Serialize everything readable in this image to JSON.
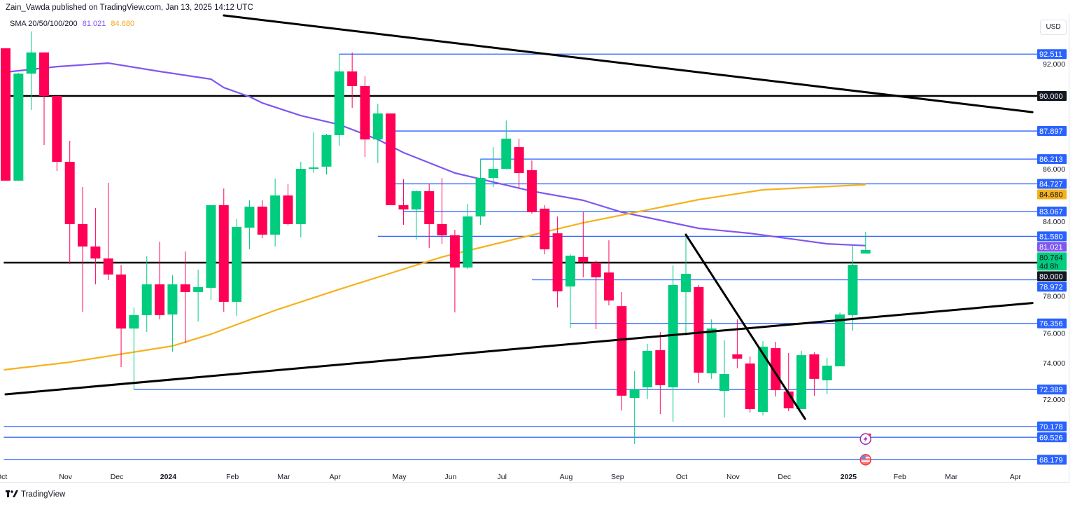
{
  "header": {
    "publisher_line": "Zain_Vawda published on TradingView.com, Jan 13, 2025 14:12 UTC",
    "currency_button": "USD",
    "footer_logo": "TradingView"
  },
  "legend": {
    "indicator": "SMA 20/50/100/200",
    "value_1": "81.021",
    "value_2": "84.680"
  },
  "colors": {
    "up": "#00cc7e",
    "down": "#ff0055",
    "sma_purple": "#7e57f0",
    "sma_orange": "#f5b21b",
    "level_blue": "#2962ff",
    "level_black": "#000000"
  },
  "icons": {
    "event_1": "lightning-event-icon",
    "event_2": "us-flag-icon"
  },
  "chart_data": {
    "type": "candlestick",
    "interval": "weekly",
    "ylim": [
      67.3,
      94.9
    ],
    "xlim": [
      "2023-10-01",
      "2025-04-20"
    ],
    "grid": false,
    "candle_fields": [
      "date",
      "open",
      "high",
      "low",
      "close"
    ],
    "candles": [
      [
        "2023-10-02",
        92.86,
        92.86,
        84.92,
        84.92
      ],
      [
        "2023-10-09",
        84.92,
        91.39,
        84.92,
        91.34
      ],
      [
        "2023-10-16",
        91.34,
        93.87,
        89.16,
        92.61
      ],
      [
        "2023-10-23",
        92.61,
        92.61,
        87.06,
        90.0
      ],
      [
        "2023-10-30",
        90.0,
        90.0,
        85.5,
        86.05
      ],
      [
        "2023-11-06",
        86.05,
        87.31,
        79.92,
        82.31
      ],
      [
        "2023-11-13",
        82.31,
        84.54,
        77.06,
        80.97
      ],
      [
        "2023-11-20",
        80.97,
        83.28,
        78.7,
        80.25
      ],
      [
        "2023-11-27",
        80.25,
        84.79,
        78.95,
        79.29
      ],
      [
        "2023-12-04",
        79.29,
        79.87,
        73.74,
        76.05
      ],
      [
        "2023-12-11",
        76.05,
        77.31,
        72.39,
        76.85
      ],
      [
        "2023-12-18",
        76.85,
        80.38,
        75.84,
        78.7
      ],
      [
        "2023-12-25",
        78.7,
        81.26,
        76.6,
        76.85
      ],
      [
        "2024-01-01",
        76.89,
        79.24,
        74.66,
        78.7
      ],
      [
        "2024-01-08",
        78.7,
        80.67,
        75.17,
        78.24
      ],
      [
        "2024-01-15",
        78.24,
        79.58,
        76.47,
        78.53
      ],
      [
        "2024-01-22",
        78.49,
        83.45,
        77.77,
        83.45
      ],
      [
        "2024-01-29",
        83.45,
        84.45,
        77.06,
        77.65
      ],
      [
        "2024-02-05",
        77.65,
        82.61,
        76.81,
        82.14
      ],
      [
        "2024-02-12",
        82.1,
        83.74,
        80.8,
        83.36
      ],
      [
        "2024-02-19",
        83.36,
        83.74,
        81.47,
        81.68
      ],
      [
        "2024-02-26",
        81.68,
        85.04,
        80.97,
        84.03
      ],
      [
        "2024-03-04",
        84.03,
        84.71,
        82.23,
        82.31
      ],
      [
        "2024-03-11",
        82.31,
        86.05,
        81.51,
        85.63
      ],
      [
        "2024-03-18",
        85.63,
        87.82,
        85.38,
        85.71
      ],
      [
        "2024-03-25",
        85.76,
        87.73,
        85.29,
        87.65
      ],
      [
        "2024-04-01",
        87.65,
        92.52,
        87.02,
        91.47
      ],
      [
        "2024-04-08",
        91.47,
        92.61,
        89.29,
        90.59
      ],
      [
        "2024-04-15",
        90.59,
        91.18,
        86.34,
        87.39
      ],
      [
        "2024-04-22",
        87.39,
        89.54,
        85.97,
        88.95
      ],
      [
        "2024-04-29",
        88.95,
        88.95,
        83.45,
        83.45
      ],
      [
        "2024-05-06",
        83.45,
        85.0,
        82.27,
        83.19
      ],
      [
        "2024-05-13",
        83.19,
        84.33,
        81.39,
        84.29
      ],
      [
        "2024-05-20",
        84.29,
        84.75,
        80.88,
        82.31
      ],
      [
        "2024-05-27",
        82.31,
        85.08,
        81.13,
        81.64
      ],
      [
        "2024-06-03",
        81.64,
        81.97,
        77.02,
        79.71
      ],
      [
        "2024-06-10",
        79.71,
        83.53,
        79.62,
        82.77
      ],
      [
        "2024-06-17",
        82.77,
        86.22,
        82.27,
        85.08
      ],
      [
        "2024-06-24",
        85.08,
        86.93,
        84.54,
        85.63
      ],
      [
        "2024-07-01",
        85.63,
        88.53,
        85.59,
        87.44
      ],
      [
        "2024-07-08",
        86.93,
        87.44,
        84.5,
        85.38
      ],
      [
        "2024-07-15",
        85.55,
        86.13,
        82.94,
        83.03
      ],
      [
        "2024-07-22",
        83.24,
        83.45,
        80.5,
        80.8
      ],
      [
        "2024-07-29",
        81.76,
        82.77,
        77.31,
        78.28
      ],
      [
        "2024-08-05",
        78.57,
        80.5,
        76.09,
        80.42
      ],
      [
        "2024-08-12",
        80.34,
        83.03,
        79.12,
        80.04
      ],
      [
        "2024-08-19",
        80.0,
        80.13,
        76.01,
        79.12
      ],
      [
        "2024-08-26",
        79.41,
        81.34,
        77.44,
        77.73
      ],
      [
        "2024-09-02",
        77.39,
        78.24,
        71.13,
        72.02
      ],
      [
        "2024-09-09",
        71.89,
        73.49,
        69.12,
        72.39
      ],
      [
        "2024-09-16",
        72.52,
        75.13,
        71.81,
        74.71
      ],
      [
        "2024-09-23",
        74.75,
        75.84,
        70.92,
        72.65
      ],
      [
        "2024-09-30",
        72.52,
        79.83,
        70.46,
        78.66
      ],
      [
        "2024-10-07",
        78.24,
        81.68,
        75.63,
        79.33
      ],
      [
        "2024-10-14",
        78.53,
        78.66,
        72.77,
        73.4
      ],
      [
        "2024-10-21",
        73.36,
        76.6,
        73.03,
        76.05
      ],
      [
        "2024-10-28",
        72.31,
        75.34,
        70.71,
        73.32
      ],
      [
        "2024-11-04",
        74.5,
        76.6,
        73.66,
        74.24
      ],
      [
        "2024-11-11",
        73.95,
        74.37,
        71.01,
        71.22
      ],
      [
        "2024-11-18",
        71.05,
        75.29,
        70.84,
        74.96
      ],
      [
        "2024-11-25",
        74.87,
        75.25,
        71.97,
        72.35
      ],
      [
        "2024-12-02",
        72.27,
        74.58,
        71.09,
        71.26
      ],
      [
        "2024-12-09",
        71.22,
        74.71,
        71.22,
        74.45
      ],
      [
        "2024-12-16",
        74.5,
        74.62,
        72.02,
        73.03
      ],
      [
        "2024-12-23",
        72.94,
        74.29,
        72.1,
        73.82
      ],
      [
        "2024-12-30",
        73.78,
        77.02,
        73.78,
        76.89
      ],
      [
        "2025-01-06",
        76.85,
        81.01,
        75.92,
        79.87
      ],
      [
        "2025-01-13",
        80.55,
        81.85,
        80.55,
        80.764
      ]
    ],
    "sma_lines": [
      {
        "value_label": "81.021",
        "color": "#7e57f0",
        "points": [
          [
            "2023-10-02",
            91.43
          ],
          [
            "2023-10-30",
            91.76
          ],
          [
            "2023-11-27",
            91.97
          ],
          [
            "2023-12-25",
            91.47
          ],
          [
            "2024-01-22",
            91.01
          ],
          [
            "2024-01-29",
            90.5
          ],
          [
            "2024-02-12",
            89.96
          ],
          [
            "2024-02-19",
            89.58
          ],
          [
            "2024-03-11",
            88.82
          ],
          [
            "2024-04-01",
            88.28
          ],
          [
            "2024-04-22",
            87.39
          ],
          [
            "2024-05-06",
            86.6
          ],
          [
            "2024-06-03",
            85.38
          ],
          [
            "2024-07-15",
            84.29
          ],
          [
            "2024-08-12",
            83.74
          ],
          [
            "2024-09-02",
            83.03
          ],
          [
            "2024-10-14",
            82.06
          ],
          [
            "2024-11-11",
            81.76
          ],
          [
            "2024-12-23",
            81.13
          ],
          [
            "2025-01-13",
            81.02
          ]
        ]
      },
      {
        "value_label": "84.680",
        "color": "#f5b21b",
        "points": [
          [
            "2023-10-01",
            73.57
          ],
          [
            "2023-11-06",
            74.03
          ],
          [
            "2024-01-01",
            75.0
          ],
          [
            "2024-01-22",
            75.71
          ],
          [
            "2024-02-26",
            77.14
          ],
          [
            "2024-04-01",
            78.4
          ],
          [
            "2024-04-29",
            79.37
          ],
          [
            "2024-05-27",
            80.34
          ],
          [
            "2024-07-08",
            81.47
          ],
          [
            "2024-08-12",
            82.39
          ],
          [
            "2024-10-14",
            83.78
          ],
          [
            "2024-11-18",
            84.37
          ],
          [
            "2025-01-13",
            84.68
          ]
        ]
      }
    ],
    "trend_lines": [
      {
        "from": [
          "2024-01-29",
          94.83
        ],
        "to": [
          "2025-04-14",
          89.03
        ]
      },
      {
        "from": [
          "2023-10-02",
          72.1
        ],
        "to": [
          "2025-04-14",
          77.58
        ]
      },
      {
        "from": [
          "2024-10-07",
          81.68
        ],
        "to": [
          "2024-12-11",
          70.63
        ]
      }
    ],
    "horizontal_levels": [
      {
        "price": 92.511,
        "label": "92.511",
        "color": "#2962ff",
        "from": "2024-04-01"
      },
      {
        "price": 90.0,
        "label": "90.000",
        "color": "#000000",
        "from": "2023-10-01"
      },
      {
        "price": 87.897,
        "label": "87.897",
        "color": "#2962ff",
        "from": "2024-05-01"
      },
      {
        "price": 86.213,
        "label": "86.213",
        "color": "#2962ff",
        "from": "2024-06-17"
      },
      {
        "price": 84.727,
        "label": "84.727",
        "color": "#2962ff",
        "from": "2024-05-01"
      },
      {
        "price": 83.067,
        "label": "83.067",
        "color": "#2962ff",
        "from": "2024-05-06"
      },
      {
        "price": 81.58,
        "label": "81.580",
        "color": "#2962ff",
        "from": "2024-04-22"
      },
      {
        "price": 80.0,
        "label": "80.000",
        "color": "#000000",
        "from": "2023-10-01"
      },
      {
        "price": 78.972,
        "label": "78.972",
        "color": "#2962ff",
        "from": "2024-07-15"
      },
      {
        "price": 76.356,
        "label": "76.356",
        "color": "#2962ff",
        "from": "2024-08-05"
      },
      {
        "price": 72.389,
        "label": "72.389",
        "color": "#2962ff",
        "from": "2023-12-11"
      },
      {
        "price": 70.178,
        "label": "70.178",
        "color": "#2962ff",
        "from": "2023-10-01"
      },
      {
        "price": 69.526,
        "label": "69.526",
        "color": "#2962ff",
        "from": "2023-10-01"
      },
      {
        "price": 68.179,
        "label": "68.179",
        "color": "#2962ff",
        "from": "2023-10-01"
      }
    ],
    "price_tags": [
      {
        "price": 84.68,
        "label": "84.680",
        "bg": "#f5b21b",
        "fg": "#131722"
      },
      {
        "price": 81.021,
        "label": "81.021",
        "bg": "#7e57f0",
        "fg": "#ffffff"
      },
      {
        "price": 80.764,
        "label": "80.764",
        "sub": "4d 8h",
        "bg": "#00cc7e",
        "fg": "#131722"
      }
    ],
    "y_ticks": [
      {
        "price": 92,
        "label": "92.000"
      },
      {
        "price": 86,
        "label": "86.000"
      },
      {
        "price": 84,
        "label": "84.000"
      },
      {
        "price": 78,
        "label": "78.000"
      },
      {
        "price": 76,
        "label": "76.000"
      },
      {
        "price": 74,
        "label": "74.000"
      },
      {
        "price": 72,
        "label": "72.000"
      }
    ],
    "x_ticks": [
      {
        "date": "2023-10-02",
        "label": "Oct"
      },
      {
        "date": "2023-11-06",
        "label": "Nov"
      },
      {
        "date": "2023-12-04",
        "label": "Dec"
      },
      {
        "date": "2024-01-01",
        "label": "2024",
        "bold": true
      },
      {
        "date": "2024-02-05",
        "label": "Feb"
      },
      {
        "date": "2024-03-04",
        "label": "Mar"
      },
      {
        "date": "2024-04-01",
        "label": "Apr"
      },
      {
        "date": "2024-05-06",
        "label": "May"
      },
      {
        "date": "2024-06-03",
        "label": "Jun"
      },
      {
        "date": "2024-07-01",
        "label": "Jul"
      },
      {
        "date": "2024-08-05",
        "label": "Aug"
      },
      {
        "date": "2024-09-02",
        "label": "Sep"
      },
      {
        "date": "2024-10-07",
        "label": "Oct"
      },
      {
        "date": "2024-11-04",
        "label": "Nov"
      },
      {
        "date": "2024-12-02",
        "label": "Dec"
      },
      {
        "date": "2025-01-06",
        "label": "2025",
        "bold": true
      },
      {
        "date": "2025-02-03",
        "label": "Feb"
      },
      {
        "date": "2025-03-03",
        "label": "Mar"
      },
      {
        "date": "2025-04-07",
        "label": "Apr"
      }
    ],
    "events": [
      {
        "date": "2025-01-13",
        "price": 69.0,
        "icon": "lightning-event-icon"
      },
      {
        "date": "2025-01-13",
        "price": 68.179,
        "icon": "us-flag-icon"
      }
    ]
  }
}
